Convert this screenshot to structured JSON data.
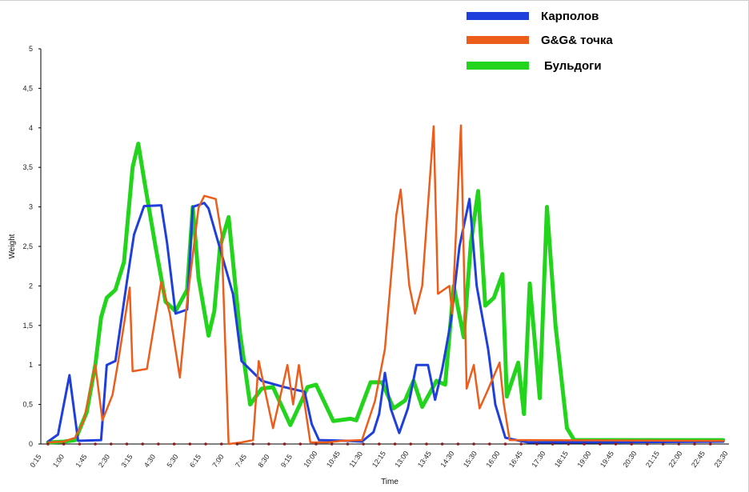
{
  "chart_data": {
    "type": "line",
    "xlabel": "Time",
    "ylabel": "Weight",
    "ylim": [
      0,
      5
    ],
    "y_ticks": [
      {
        "value": 0,
        "label": "0"
      },
      {
        "value": 0.5,
        "label": "0,5"
      },
      {
        "value": 1,
        "label": "1"
      },
      {
        "value": 1.5,
        "label": "1,5"
      },
      {
        "value": 2,
        "label": "2"
      },
      {
        "value": 2.5,
        "label": "2,5"
      },
      {
        "value": 3,
        "label": "3"
      },
      {
        "value": 3.5,
        "label": "3,5"
      },
      {
        "value": 4,
        "label": "4"
      },
      {
        "value": 4.5,
        "label": "4,5"
      },
      {
        "value": 5,
        "label": "5"
      }
    ],
    "x_tick_labels": [
      "0:15",
      "1:00",
      "1:45",
      "2:30",
      "3:15",
      "4:30",
      "5:30",
      "6:15",
      "7:00",
      "7:45",
      "8:30",
      "9:15",
      "10:00",
      "10:45",
      "11:30",
      "12:15",
      "13:00",
      "13:45",
      "14:30",
      "15:30",
      "16:00",
      "16:45",
      "17:30",
      "18:15",
      "19:00",
      "19:45",
      "20:30",
      "21:15",
      "22:00",
      "22:45",
      "23:30"
    ],
    "legend_position": "top-right",
    "grid": false,
    "series": [
      {
        "name": "Карполов",
        "color": "#1f3fdd",
        "points": [
          [
            0.25,
            0.03
          ],
          [
            0.6,
            0.12
          ],
          [
            1.0,
            0.87
          ],
          [
            1.3,
            0.04
          ],
          [
            2.1,
            0.05
          ],
          [
            2.3,
            1.0
          ],
          [
            2.6,
            1.05
          ],
          [
            3.0,
            2.05
          ],
          [
            3.25,
            2.65
          ],
          [
            3.6,
            3.01
          ],
          [
            4.2,
            3.02
          ],
          [
            4.4,
            2.55
          ],
          [
            4.7,
            1.65
          ],
          [
            5.1,
            1.7
          ],
          [
            5.3,
            3.0
          ],
          [
            5.7,
            3.05
          ],
          [
            5.85,
            2.98
          ],
          [
            6.7,
            1.9
          ],
          [
            7.0,
            1.05
          ],
          [
            7.7,
            0.8
          ],
          [
            8.5,
            0.72
          ],
          [
            9.2,
            0.66
          ],
          [
            9.45,
            0.25
          ],
          [
            9.7,
            0.05
          ],
          [
            10.7,
            0.04
          ],
          [
            11.2,
            0.03
          ],
          [
            11.6,
            0.15
          ],
          [
            11.8,
            0.38
          ],
          [
            12.0,
            0.9
          ],
          [
            12.2,
            0.45
          ],
          [
            12.5,
            0.14
          ],
          [
            12.8,
            0.45
          ],
          [
            13.1,
            1.0
          ],
          [
            13.5,
            1.0
          ],
          [
            13.75,
            0.56
          ],
          [
            14.0,
            0.95
          ],
          [
            14.3,
            1.55
          ],
          [
            14.6,
            2.5
          ],
          [
            14.95,
            3.1
          ],
          [
            15.2,
            2.0
          ],
          [
            15.6,
            1.2
          ],
          [
            15.85,
            0.5
          ],
          [
            16.2,
            0.08
          ],
          [
            16.7,
            0.04
          ],
          [
            17.0,
            0.02
          ],
          [
            17.8,
            0.02
          ],
          [
            19.0,
            0.02
          ],
          [
            23.8,
            0.03
          ]
        ]
      },
      {
        "name": "G&G& точка",
        "color": "#ec5d1c",
        "points": [
          [
            0.25,
            0.02
          ],
          [
            0.8,
            0.03
          ],
          [
            1.2,
            0.08
          ],
          [
            1.5,
            0.3
          ],
          [
            1.9,
            1.0
          ],
          [
            2.15,
            0.3
          ],
          [
            2.5,
            0.62
          ],
          [
            2.7,
            1.05
          ],
          [
            3.1,
            1.98
          ],
          [
            3.2,
            0.92
          ],
          [
            3.7,
            0.95
          ],
          [
            4.2,
            2.05
          ],
          [
            4.5,
            1.65
          ],
          [
            4.85,
            0.84
          ],
          [
            5.1,
            1.8
          ],
          [
            5.5,
            2.99
          ],
          [
            5.7,
            3.14
          ],
          [
            6.1,
            3.1
          ],
          [
            6.3,
            2.65
          ],
          [
            6.55,
            0.0
          ],
          [
            7.0,
            0.02
          ],
          [
            7.4,
            0.05
          ],
          [
            7.6,
            1.05
          ],
          [
            8.1,
            0.2
          ],
          [
            8.6,
            1.0
          ],
          [
            8.8,
            0.5
          ],
          [
            9.0,
            1.0
          ],
          [
            9.4,
            0.02
          ],
          [
            10.0,
            0.02
          ],
          [
            10.5,
            0.04
          ],
          [
            11.2,
            0.05
          ],
          [
            11.65,
            0.54
          ],
          [
            12.0,
            1.2
          ],
          [
            12.4,
            2.9
          ],
          [
            12.55,
            3.22
          ],
          [
            12.85,
            2.0
          ],
          [
            13.05,
            1.65
          ],
          [
            13.3,
            2.0
          ],
          [
            13.7,
            4.02
          ],
          [
            13.85,
            1.9
          ],
          [
            14.25,
            2.0
          ],
          [
            14.35,
            1.65
          ],
          [
            14.65,
            4.03
          ],
          [
            14.85,
            0.7
          ],
          [
            15.1,
            1.0
          ],
          [
            15.3,
            0.45
          ],
          [
            15.55,
            0.65
          ],
          [
            16.0,
            1.03
          ],
          [
            16.15,
            0.5
          ],
          [
            16.35,
            0.05
          ],
          [
            17.0,
            0.05
          ],
          [
            23.8,
            0.04
          ]
        ]
      },
      {
        "name": "Бульдоги",
        "color": "#22d41b",
        "points": [
          [
            0.25,
            0.02
          ],
          [
            0.8,
            0.03
          ],
          [
            1.2,
            0.05
          ],
          [
            1.6,
            0.4
          ],
          [
            1.9,
            1.0
          ],
          [
            2.1,
            1.6
          ],
          [
            2.3,
            1.85
          ],
          [
            2.6,
            1.95
          ],
          [
            2.9,
            2.3
          ],
          [
            3.2,
            3.5
          ],
          [
            3.4,
            3.8
          ],
          [
            3.6,
            3.35
          ],
          [
            4.0,
            2.5
          ],
          [
            4.35,
            1.8
          ],
          [
            4.7,
            1.68
          ],
          [
            5.1,
            1.95
          ],
          [
            5.3,
            3.0
          ],
          [
            5.5,
            2.1
          ],
          [
            5.85,
            1.37
          ],
          [
            6.05,
            1.68
          ],
          [
            6.25,
            2.5
          ],
          [
            6.55,
            2.87
          ],
          [
            6.95,
            1.4
          ],
          [
            7.3,
            0.5
          ],
          [
            7.7,
            0.7
          ],
          [
            8.1,
            0.72
          ],
          [
            8.7,
            0.24
          ],
          [
            9.1,
            0.55
          ],
          [
            9.3,
            0.72
          ],
          [
            9.6,
            0.75
          ],
          [
            10.2,
            0.29
          ],
          [
            10.8,
            0.32
          ],
          [
            11.0,
            0.3
          ],
          [
            11.5,
            0.78
          ],
          [
            11.9,
            0.78
          ],
          [
            12.3,
            0.45
          ],
          [
            12.7,
            0.55
          ],
          [
            13.0,
            0.8
          ],
          [
            13.3,
            0.47
          ],
          [
            13.8,
            0.8
          ],
          [
            14.1,
            0.75
          ],
          [
            14.4,
            2.0
          ],
          [
            14.75,
            1.35
          ],
          [
            15.0,
            2.55
          ],
          [
            15.25,
            3.2
          ],
          [
            15.5,
            1.75
          ],
          [
            15.8,
            1.85
          ],
          [
            16.1,
            2.15
          ],
          [
            16.25,
            0.6
          ],
          [
            16.65,
            1.03
          ],
          [
            16.85,
            0.38
          ],
          [
            17.05,
            2.03
          ],
          [
            17.4,
            0.58
          ],
          [
            17.65,
            3.0
          ],
          [
            17.95,
            1.5
          ],
          [
            18.35,
            0.2
          ],
          [
            18.6,
            0.05
          ],
          [
            19.2,
            0.05
          ],
          [
            23.8,
            0.05
          ]
        ]
      }
    ]
  }
}
